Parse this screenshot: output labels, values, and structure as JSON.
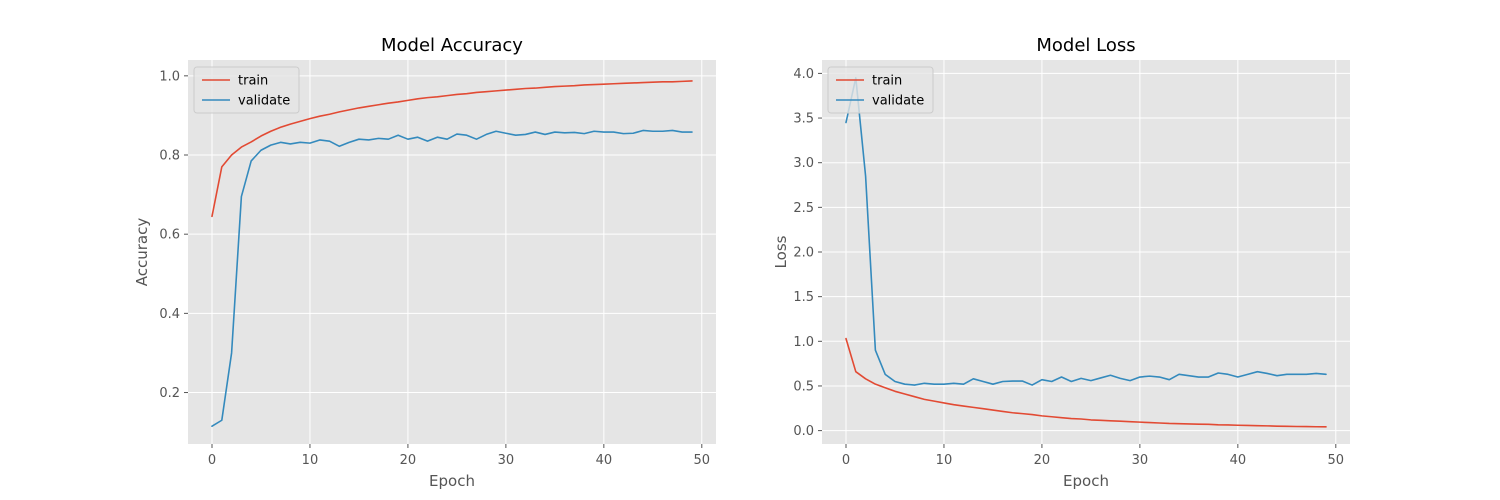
{
  "chart_data": [
    {
      "type": "line",
      "title": "Model Accuracy",
      "xlabel": "Epoch",
      "ylabel": "Accuracy",
      "xlim": [
        -2.45,
        51.45
      ],
      "ylim": [
        0.07,
        1.04
      ],
      "xticks": [
        0,
        10,
        20,
        30,
        40,
        50
      ],
      "yticks": [
        0.2,
        0.4,
        0.6,
        0.8,
        1.0
      ],
      "xtick_labels": [
        "0",
        "10",
        "20",
        "30",
        "40",
        "50"
      ],
      "ytick_labels": [
        "0.2",
        "0.4",
        "0.6",
        "0.8",
        "1.0"
      ],
      "grid": true,
      "legend_position": "top-left",
      "series": [
        {
          "name": "train",
          "color": "#E24A33",
          "values": [
            0.645,
            0.77,
            0.8,
            0.82,
            0.833,
            0.848,
            0.86,
            0.87,
            0.878,
            0.885,
            0.892,
            0.898,
            0.903,
            0.909,
            0.914,
            0.919,
            0.923,
            0.927,
            0.931,
            0.934,
            0.938,
            0.942,
            0.945,
            0.947,
            0.95,
            0.953,
            0.955,
            0.958,
            0.96,
            0.962,
            0.964,
            0.966,
            0.968,
            0.969,
            0.971,
            0.973,
            0.974,
            0.975,
            0.977,
            0.978,
            0.979,
            0.98,
            0.981,
            0.982,
            0.983,
            0.984,
            0.985,
            0.985,
            0.986,
            0.987
          ]
        },
        {
          "name": "validate",
          "color": "#348ABD",
          "values": [
            0.115,
            0.13,
            0.3,
            0.695,
            0.785,
            0.812,
            0.825,
            0.832,
            0.828,
            0.832,
            0.83,
            0.838,
            0.835,
            0.822,
            0.832,
            0.84,
            0.838,
            0.842,
            0.84,
            0.85,
            0.84,
            0.845,
            0.835,
            0.845,
            0.84,
            0.853,
            0.85,
            0.84,
            0.852,
            0.86,
            0.855,
            0.85,
            0.852,
            0.858,
            0.852,
            0.858,
            0.856,
            0.857,
            0.854,
            0.86,
            0.858,
            0.858,
            0.854,
            0.855,
            0.862,
            0.86,
            0.86,
            0.862,
            0.858,
            0.858
          ]
        }
      ]
    },
    {
      "type": "line",
      "title": "Model Loss",
      "xlabel": "Epoch",
      "ylabel": "Loss",
      "xlim": [
        -2.45,
        51.45
      ],
      "ylim": [
        -0.15,
        4.15
      ],
      "xticks": [
        0,
        10,
        20,
        30,
        40,
        50
      ],
      "yticks": [
        0.0,
        0.5,
        1.0,
        1.5,
        2.0,
        2.5,
        3.0,
        3.5,
        4.0
      ],
      "xtick_labels": [
        "0",
        "10",
        "20",
        "30",
        "40",
        "50"
      ],
      "ytick_labels": [
        "0.0",
        "0.5",
        "1.0",
        "1.5",
        "2.0",
        "2.5",
        "3.0",
        "3.5",
        "4.0"
      ],
      "grid": true,
      "legend_position": "top-left",
      "series": [
        {
          "name": "train",
          "color": "#E24A33",
          "values": [
            1.03,
            0.66,
            0.58,
            0.52,
            0.48,
            0.44,
            0.41,
            0.38,
            0.35,
            0.33,
            0.31,
            0.29,
            0.275,
            0.26,
            0.245,
            0.23,
            0.215,
            0.2,
            0.19,
            0.18,
            0.165,
            0.155,
            0.145,
            0.135,
            0.13,
            0.12,
            0.115,
            0.11,
            0.105,
            0.1,
            0.095,
            0.09,
            0.085,
            0.08,
            0.078,
            0.075,
            0.072,
            0.07,
            0.065,
            0.063,
            0.06,
            0.058,
            0.055,
            0.053,
            0.05,
            0.048,
            0.046,
            0.045,
            0.043,
            0.042
          ]
        },
        {
          "name": "validate",
          "color": "#348ABD",
          "values": [
            3.45,
            3.95,
            2.85,
            0.9,
            0.63,
            0.55,
            0.52,
            0.51,
            0.53,
            0.52,
            0.52,
            0.53,
            0.52,
            0.58,
            0.55,
            0.52,
            0.55,
            0.555,
            0.555,
            0.51,
            0.57,
            0.55,
            0.6,
            0.55,
            0.585,
            0.56,
            0.59,
            0.62,
            0.585,
            0.56,
            0.6,
            0.61,
            0.6,
            0.57,
            0.63,
            0.615,
            0.6,
            0.6,
            0.645,
            0.63,
            0.6,
            0.63,
            0.66,
            0.64,
            0.615,
            0.63,
            0.63,
            0.63,
            0.64,
            0.63
          ]
        }
      ]
    }
  ]
}
